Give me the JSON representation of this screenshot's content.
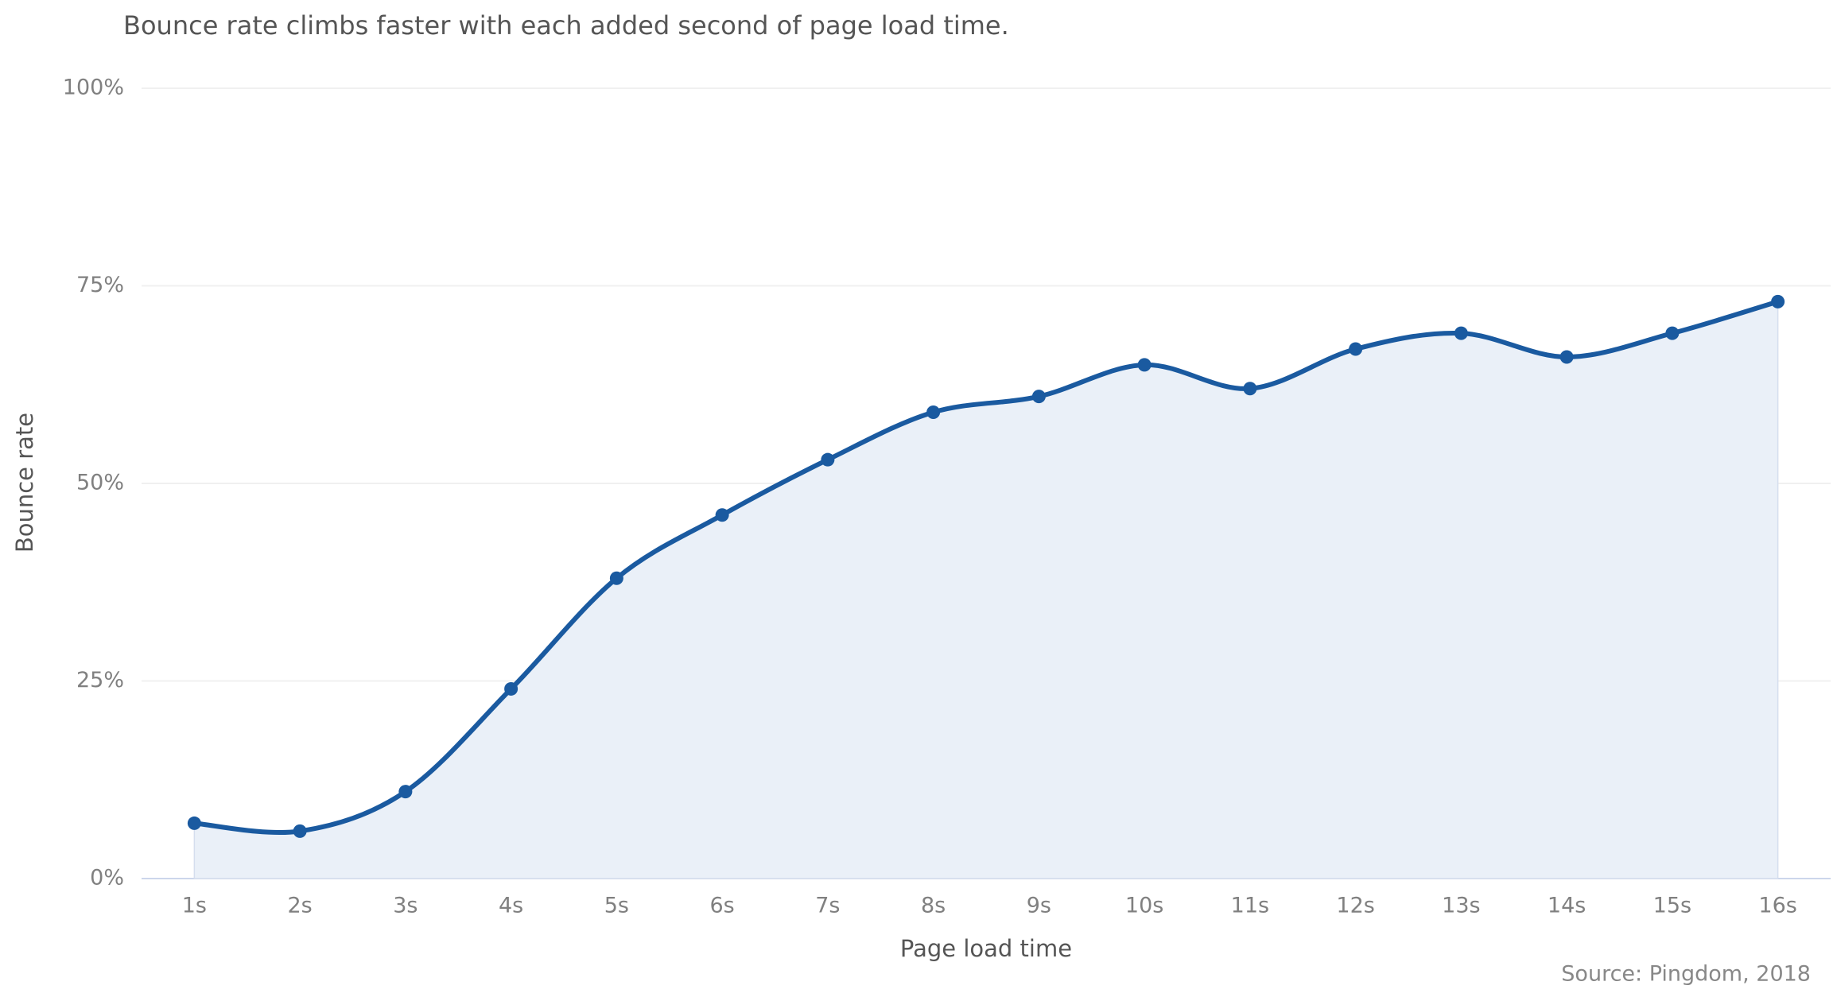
{
  "chart_data": {
    "type": "line",
    "title": "Bounce rate climbs faster with each added second of page load time.",
    "x_label": "Page load time",
    "y_label": "Bounce rate",
    "source": "Source: Pingdom, 2018",
    "categories": [
      "1s",
      "2s",
      "3s",
      "4s",
      "5s",
      "6s",
      "7s",
      "8s",
      "9s",
      "10s",
      "11s",
      "12s",
      "13s",
      "14s",
      "15s",
      "16s"
    ],
    "values": [
      7,
      6,
      11,
      24,
      38,
      46,
      53,
      59,
      61,
      65,
      62,
      67,
      69,
      66,
      69,
      73
    ],
    "color": "#1a5aa0",
    "fill_area": true,
    "area_color": "#eaf0f8",
    "smooth": true,
    "ylim": [
      0,
      100
    ],
    "yticks": [
      {
        "value": 0,
        "label": "0%"
      },
      {
        "value": 25,
        "label": "25%"
      },
      {
        "value": 50,
        "label": "50%"
      },
      {
        "value": 75,
        "label": "75%"
      },
      {
        "value": 100,
        "label": "100%"
      }
    ],
    "grid": true
  }
}
